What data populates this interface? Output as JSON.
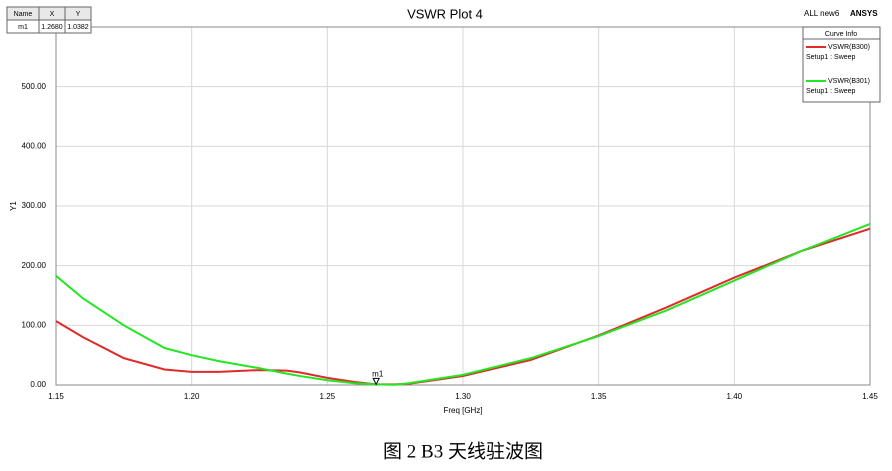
{
  "chart_data": {
    "type": "line",
    "title": "VSWR Plot 4",
    "project": "ALL new6",
    "brand": "ANSYS",
    "xlabel": "Freq [GHz]",
    "ylabel": "Y1",
    "x": [
      1.15,
      1.16,
      1.175,
      1.19,
      1.2,
      1.21,
      1.225,
      1.235,
      1.24,
      1.25,
      1.26,
      1.268,
      1.275,
      1.28,
      1.3,
      1.325,
      1.35,
      1.375,
      1.4,
      1.425,
      1.45
    ],
    "series": [
      {
        "name": "VSWR(B300)",
        "setup": "Setup1 : Sweep",
        "color": "#e02a2a",
        "values": [
          107,
          80,
          45,
          26,
          22,
          22,
          25,
          24,
          21,
          12,
          5,
          1.04,
          1,
          2,
          15,
          42,
          83,
          130,
          180,
          225,
          262
        ]
      },
      {
        "name": "VSWR(B301)",
        "setup": "Setup1 : Sweep",
        "color": "#22e622",
        "values": [
          183,
          145,
          100,
          62,
          50,
          40,
          28,
          19,
          15,
          8,
          3,
          1,
          0.5,
          3,
          17,
          45,
          82,
          125,
          175,
          225,
          270
        ]
      }
    ],
    "legend_title": "Curve Info",
    "xlim": [
      1.15,
      1.45
    ],
    "xticks": [
      1.15,
      {
        "value": 1.2,
        "label": "1.20"
      },
      1.25,
      {
        "value": 1.3,
        "label": "1.30"
      },
      1.35,
      {
        "value": 1.4,
        "label": "1.40"
      },
      1.45
    ],
    "ylim": [
      0,
      600
    ],
    "yticks": [
      {
        "value": 0,
        "label": "0.00"
      },
      {
        "value": 100,
        "label": "100.00"
      },
      {
        "value": 200,
        "label": "200.00"
      },
      {
        "value": 300,
        "label": "300.00"
      },
      {
        "value": 400,
        "label": "400.00"
      },
      {
        "value": 500,
        "label": "500.00"
      }
    ],
    "grid": true,
    "marker": {
      "headers": [
        "Name",
        "X",
        "Y"
      ],
      "name": "m1",
      "x": {
        "value": 1.268,
        "label": "1.2680"
      },
      "y": 1.0382
    }
  },
  "caption": "图 2 B3 天线驻波图"
}
